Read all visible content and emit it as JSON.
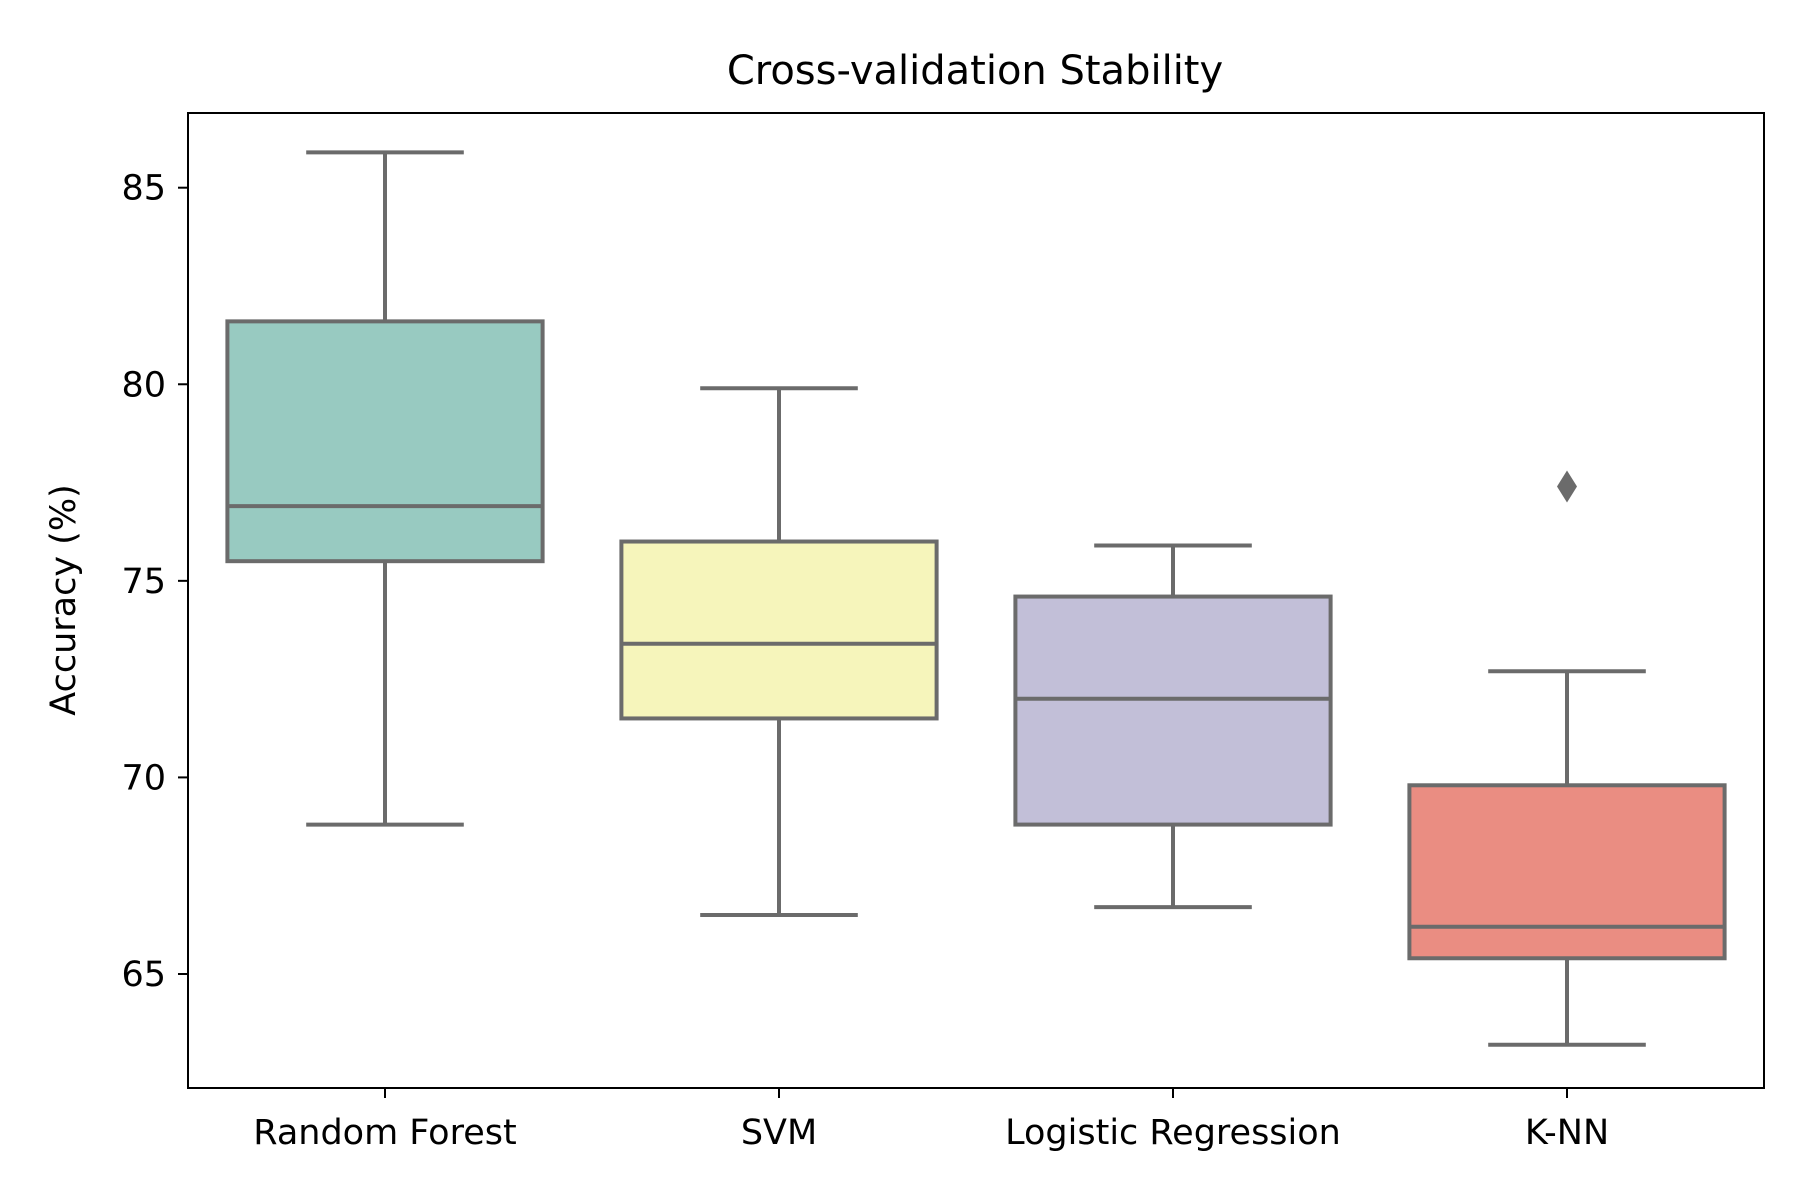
{
  "chart_data": {
    "type": "box",
    "title": "Cross-validation Stability",
    "xlabel": "",
    "ylabel": "Accuracy (%)",
    "ylim": [
      62.1,
      86.9
    ],
    "yticks": [
      65,
      70,
      75,
      80,
      85
    ],
    "grid": false,
    "categories": [
      "Random Forest",
      "SVM",
      "Logistic Regression",
      "K-NN"
    ],
    "boxes": [
      {
        "category": "Random Forest",
        "whisker_low": 68.8,
        "q1": 75.5,
        "median": 76.9,
        "q3": 81.6,
        "whisker_high": 85.9,
        "outliers": [],
        "color": "#98cac1"
      },
      {
        "category": "SVM",
        "whisker_low": 66.5,
        "q1": 71.5,
        "median": 73.4,
        "q3": 76.0,
        "whisker_high": 79.9,
        "outliers": [],
        "color": "#f6f5bb"
      },
      {
        "category": "Logistic Regression",
        "whisker_low": 66.7,
        "q1": 68.8,
        "median": 72.0,
        "q3": 74.6,
        "whisker_high": 75.9,
        "outliers": [],
        "color": "#c2bfd8"
      },
      {
        "category": "K-NN",
        "whisker_low": 63.2,
        "q1": 65.4,
        "median": 66.2,
        "q3": 69.8,
        "whisker_high": 72.7,
        "outliers": [
          77.4
        ],
        "color": "#ea8d82"
      }
    ],
    "line_color": "#6b6b6b"
  }
}
